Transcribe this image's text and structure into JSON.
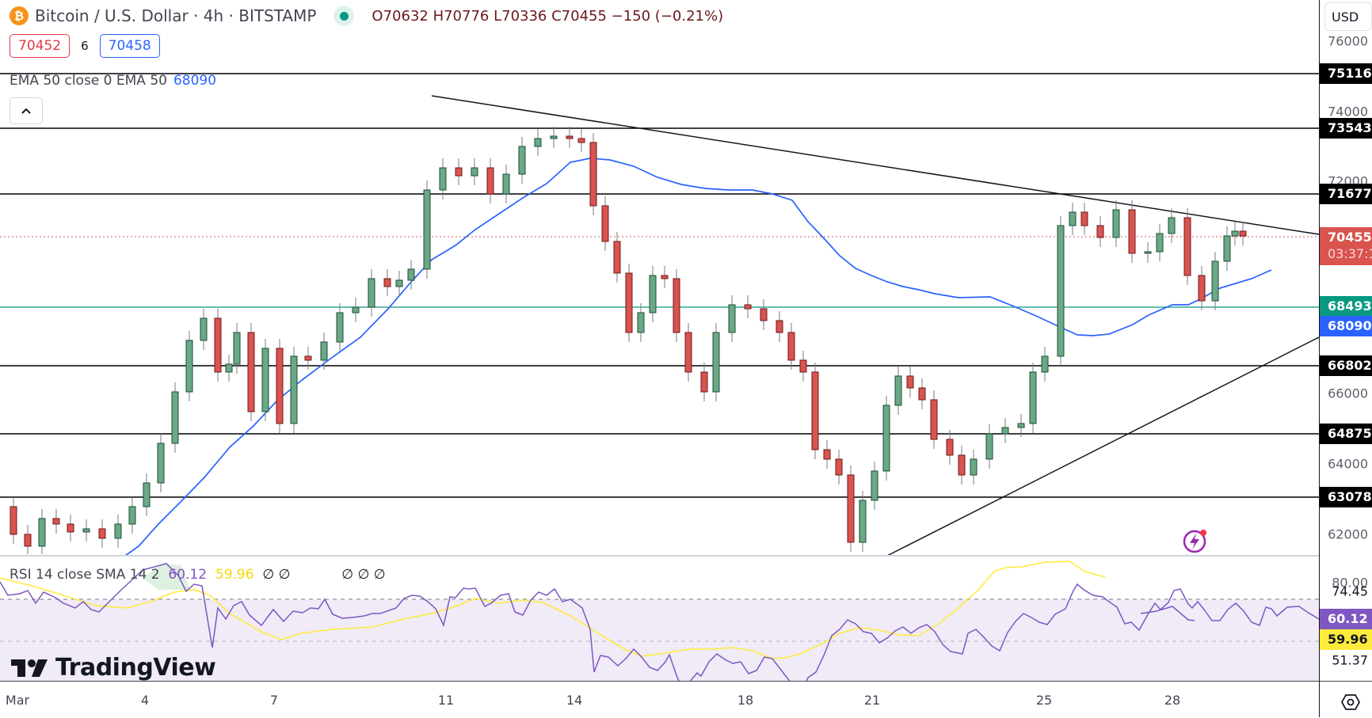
{
  "header": {
    "symbol_icon": "bitcoin-icon",
    "title": "Bitcoin / U.S. Dollar · 4h · BITSTAMP",
    "status": "market-open",
    "ohlc": "O70632 H70776 L70336 C70455 −150 (−0.21%)",
    "bid": "70452",
    "spread": "6",
    "ask": "70458"
  },
  "indicators": {
    "ema_legend": "EMA 50 close 0 EMA 50",
    "ema_value": "68090",
    "collapse_icon": "chevron-up-icon",
    "rsi_legend": "RSI 14 close SMA 14 2",
    "rsi_value": "60.12",
    "rsi_sma_value": "59.96",
    "rsi_extra_1": "∅ ∅",
    "rsi_extra_2": "∅ ∅ ∅"
  },
  "price_axis": {
    "currency": "USD",
    "ticks": [
      "76000",
      "74000",
      "72000",
      "66000",
      "64000",
      "62000"
    ],
    "levels": [
      {
        "value": "75116",
        "color": "#000000"
      },
      {
        "value": "73543",
        "color": "#000000"
      },
      {
        "value": "71677",
        "color": "#000000"
      },
      {
        "value": "66802",
        "color": "#000000"
      },
      {
        "value": "64875",
        "color": "#000000"
      },
      {
        "value": "63078",
        "color": "#000000"
      }
    ],
    "current_price": "70455",
    "countdown": "03:37:1",
    "current_color": "#d9534f",
    "horizontal_teal": "68493",
    "teal_color": "#089981",
    "ema_label": "68090",
    "ema_color": "#2962ff"
  },
  "rsi_axis": {
    "ticks": [
      "80.00",
      "74.45",
      "51.37"
    ],
    "rsi_label": "60.12",
    "rsi_color": "#7e57c2",
    "sma_label": "59.96",
    "sma_color": "#ffeb3b"
  },
  "time_axis": {
    "labels": [
      "Mar",
      "4",
      "7",
      "11",
      "14",
      "18",
      "21",
      "25",
      "28"
    ]
  },
  "branding": {
    "logo_text": "TradingView"
  },
  "chart_data": {
    "type": "candlestick",
    "title": "Bitcoin / U.S. Dollar · 4h · BITSTAMP",
    "xlabel": "",
    "ylabel": "USD",
    "x_ticks": [
      "Mar",
      "4",
      "7",
      "11",
      "14",
      "18",
      "21",
      "25",
      "28"
    ],
    "ylim": [
      61500,
      76500
    ],
    "last_ohlc": {
      "open": 70632,
      "high": 70776,
      "low": 70336,
      "close": 70455,
      "change": -150,
      "change_pct": -0.21
    },
    "horizontal_levels": [
      75116,
      73543,
      71677,
      68493,
      66802,
      64875,
      63078
    ],
    "ema50_last": 68090,
    "trendlines": [
      {
        "name": "descending resistance",
        "from": {
          "x": "Mar 11",
          "y": 74900
        },
        "to": {
          "x": "Mar 29",
          "y": 70500
        }
      },
      {
        "name": "ascending support",
        "from": {
          "x": "Mar 20",
          "y": 61500
        },
        "to": {
          "x": "Mar 29",
          "y": 67300
        }
      }
    ],
    "rsi": {
      "period": 14,
      "value": 60.12,
      "sma": 59.96,
      "bands": [
        74.45,
        51.37
      ]
    }
  }
}
